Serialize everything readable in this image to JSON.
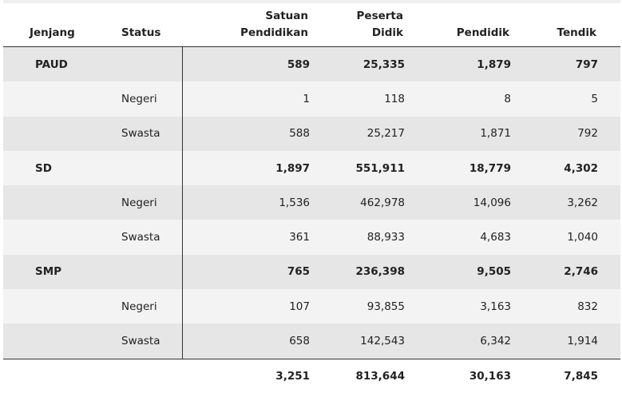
{
  "headers": {
    "jenjang": "Jenjang",
    "status": "Status",
    "satuan_1": "Satuan",
    "satuan_2": "Pendidikan",
    "peserta_1": "Peserta",
    "peserta_2": "Didik",
    "pendidik": "Pendidik",
    "tendik": "Tendik"
  },
  "rows": [
    {
      "jenjang": "PAUD",
      "status": "",
      "satuan": "589",
      "peserta": "25,335",
      "pendidik": "1,879",
      "tendik": "797"
    },
    {
      "jenjang": "",
      "status": "Negeri",
      "satuan": "1",
      "peserta": "118",
      "pendidik": "8",
      "tendik": "5"
    },
    {
      "jenjang": "",
      "status": "Swasta",
      "satuan": "588",
      "peserta": "25,217",
      "pendidik": "1,871",
      "tendik": "792"
    },
    {
      "jenjang": "SD",
      "status": "",
      "satuan": "1,897",
      "peserta": "551,911",
      "pendidik": "18,779",
      "tendik": "4,302"
    },
    {
      "jenjang": "",
      "status": "Negeri",
      "satuan": "1,536",
      "peserta": "462,978",
      "pendidik": "14,096",
      "tendik": "3,262"
    },
    {
      "jenjang": "",
      "status": "Swasta",
      "satuan": "361",
      "peserta": "88,933",
      "pendidik": "4,683",
      "tendik": "1,040"
    },
    {
      "jenjang": "SMP",
      "status": "",
      "satuan": "765",
      "peserta": "236,398",
      "pendidik": "9,505",
      "tendik": "2,746"
    },
    {
      "jenjang": "",
      "status": "Negeri",
      "satuan": "107",
      "peserta": "93,855",
      "pendidik": "3,163",
      "tendik": "832"
    },
    {
      "jenjang": "",
      "status": "Swasta",
      "satuan": "658",
      "peserta": "142,543",
      "pendidik": "6,342",
      "tendik": "1,914"
    }
  ],
  "total": {
    "satuan": "3,251",
    "peserta": "813,644",
    "pendidik": "30,163",
    "tendik": "7,845"
  }
}
